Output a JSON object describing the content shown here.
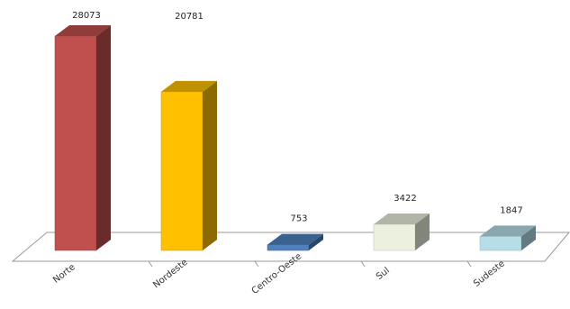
{
  "chart_data": {
    "type": "bar",
    "style": "3d",
    "categories": [
      "Norte",
      "Nordeste",
      "Centro-Oeste",
      "Sul",
      "Sudeste"
    ],
    "values": [
      28073,
      20781,
      753,
      3422,
      1847
    ],
    "colors": [
      "#c0504d",
      "#ffc000",
      "#4f81bd",
      "#ebf1de",
      "#b7dee8"
    ],
    "title": "",
    "xlabel": "",
    "ylabel": "",
    "ylim": [
      0,
      30000
    ],
    "grid": false,
    "legend": "none"
  }
}
